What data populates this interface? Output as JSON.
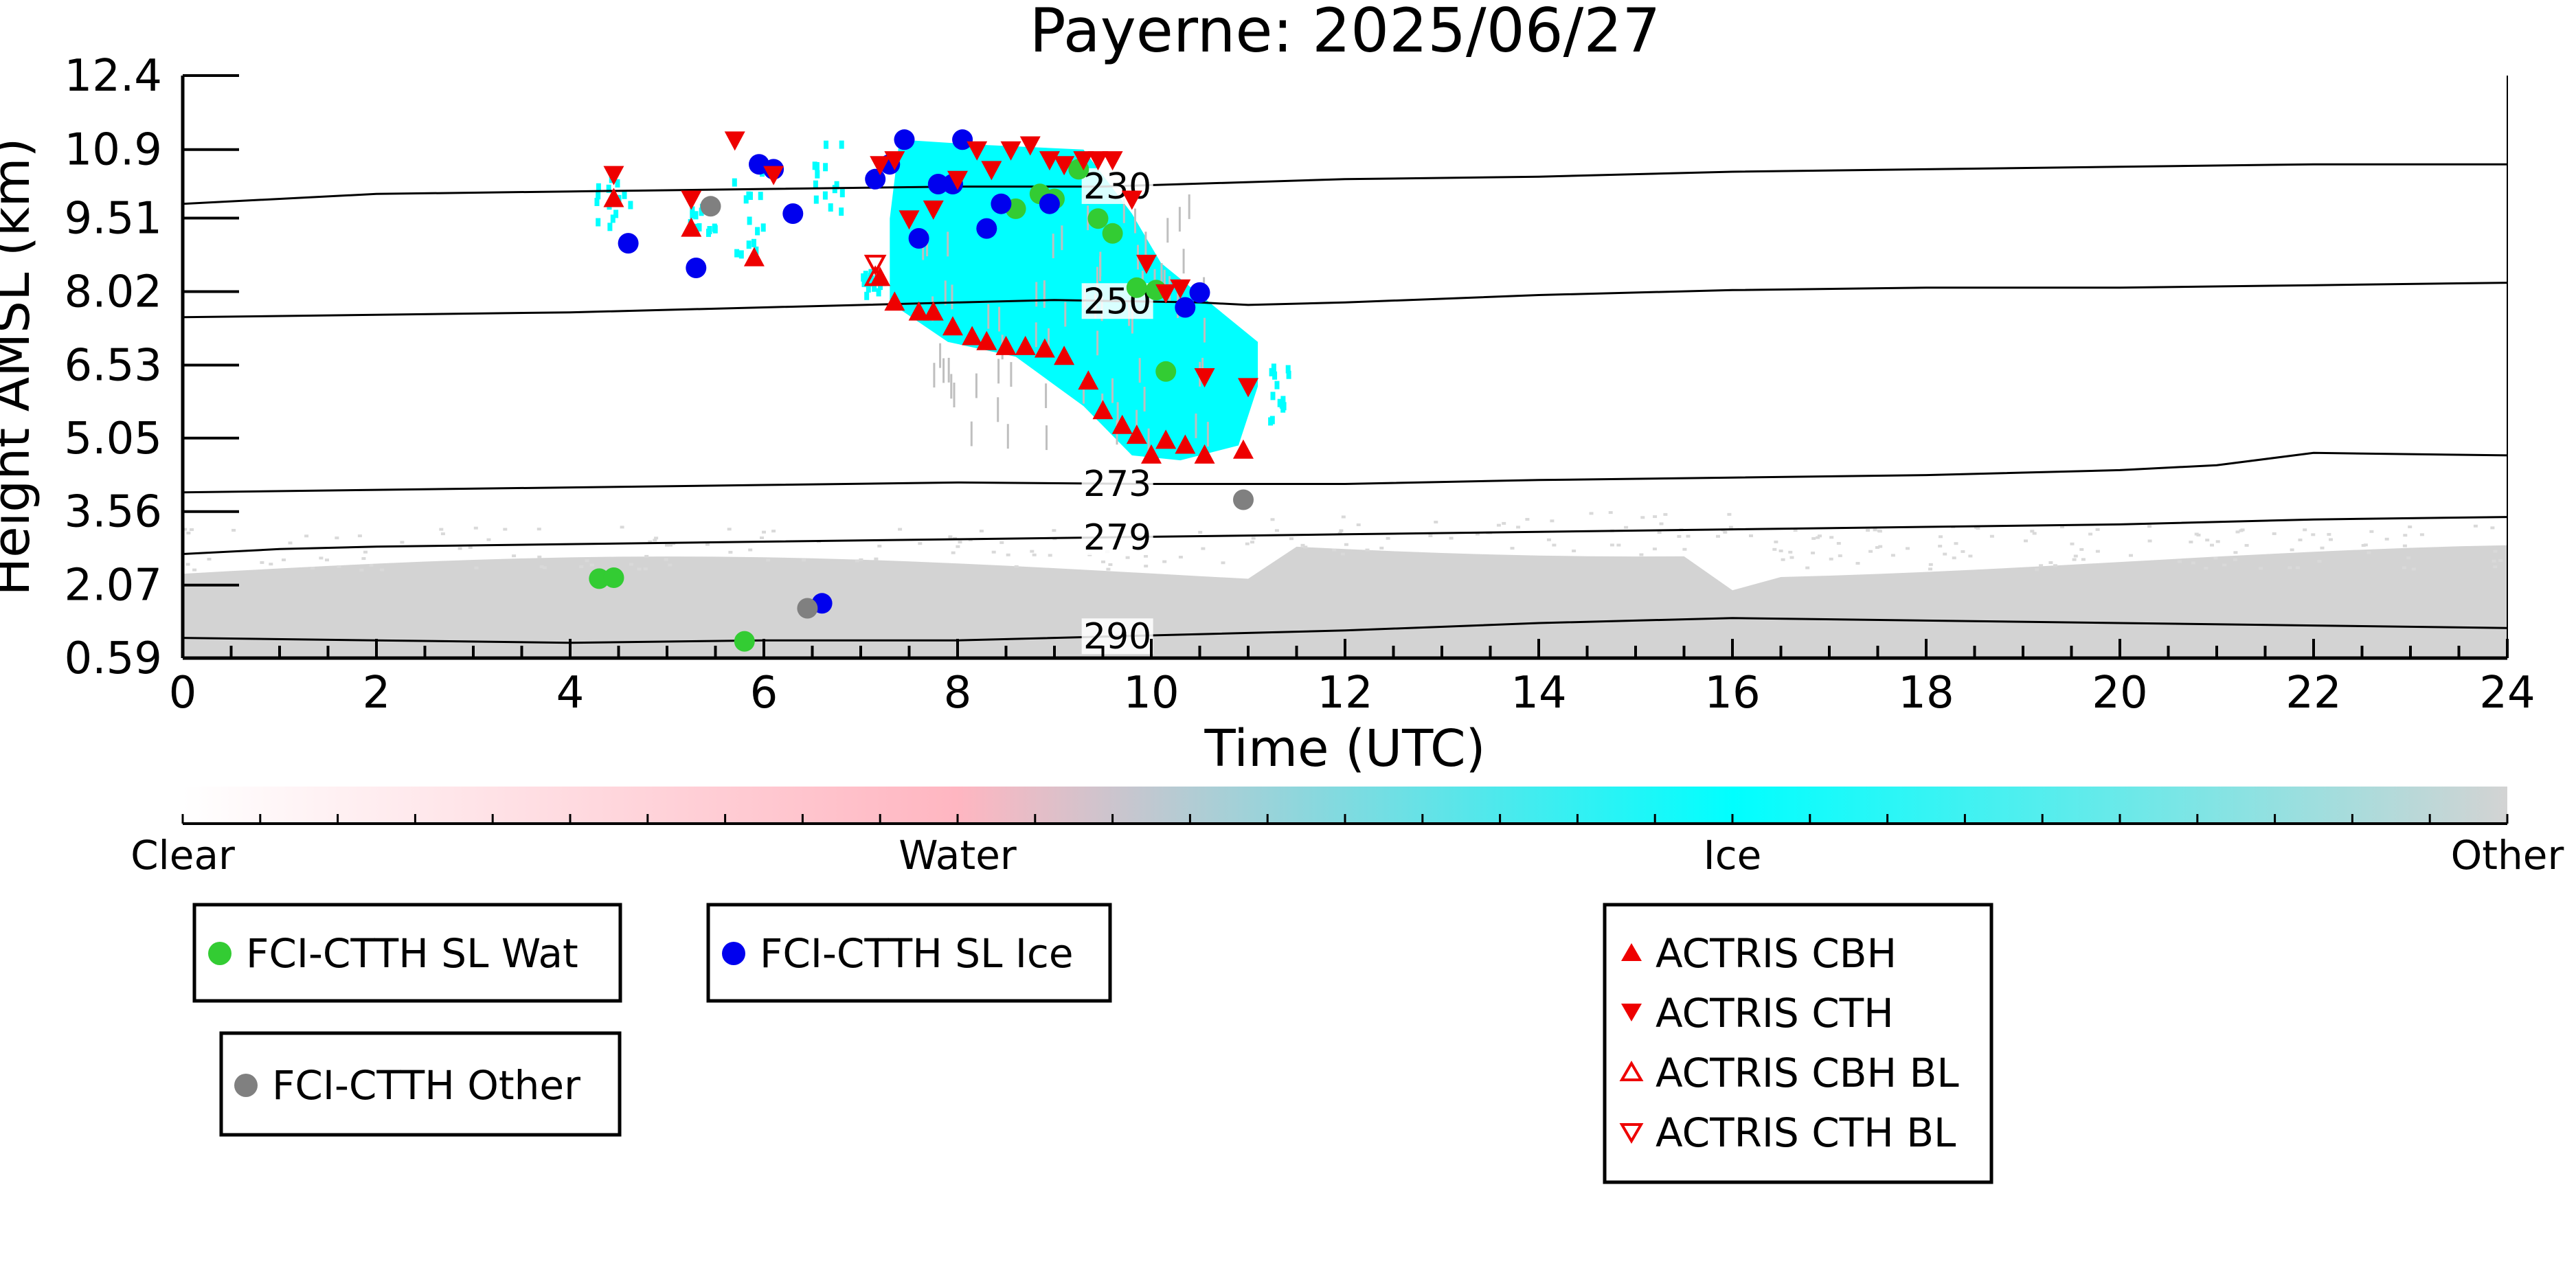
{
  "chart_data": {
    "type": "scatter",
    "title": "Payerne: 2025/06/27",
    "xlabel": "Time (UTC)",
    "ylabel": "Height AMSL (km)",
    "xlim": [
      0,
      24
    ],
    "ylim": [
      0.59,
      12.4
    ],
    "x_ticks": [
      "0",
      "2",
      "4",
      "6",
      "8",
      "10",
      "12",
      "14",
      "16",
      "18",
      "20",
      "22",
      "24"
    ],
    "y_ticks": [
      "0.59",
      "2.07",
      "3.56",
      "5.05",
      "6.53",
      "8.02",
      "9.51",
      "10.9",
      "12.4"
    ],
    "colorbar": {
      "labels": [
        "Clear",
        "Water",
        "Ice",
        "Other"
      ],
      "colors": [
        "#ffffff",
        "#ffb6c1",
        "#00ffff",
        "#d3d3d3"
      ]
    },
    "contours": [
      {
        "label": "230",
        "x": [
          0,
          2,
          4,
          6,
          8,
          9.5,
          12,
          14,
          16,
          18,
          20,
          22,
          24
        ],
        "y": [
          9.8,
          10.0,
          10.05,
          10.1,
          10.15,
          10.15,
          10.3,
          10.35,
          10.45,
          10.5,
          10.55,
          10.6,
          10.6
        ]
      },
      {
        "label": "250",
        "x": [
          0,
          2,
          4,
          6,
          8,
          9,
          10.5,
          11,
          12,
          14,
          16,
          18,
          20,
          22,
          24
        ],
        "y": [
          7.5,
          7.55,
          7.6,
          7.7,
          7.8,
          7.85,
          7.8,
          7.75,
          7.8,
          7.95,
          8.05,
          8.1,
          8.1,
          8.15,
          8.2
        ]
      },
      {
        "label": "273",
        "x": [
          0,
          2,
          4,
          6,
          8,
          10,
          12,
          14,
          16,
          18,
          20,
          21,
          22,
          24
        ],
        "y": [
          3.95,
          4.0,
          4.05,
          4.1,
          4.15,
          4.12,
          4.12,
          4.2,
          4.25,
          4.3,
          4.4,
          4.5,
          4.75,
          4.7
        ]
      },
      {
        "label": "279",
        "x": [
          0,
          1,
          2,
          4,
          6,
          8,
          10,
          12,
          14,
          16,
          18,
          20,
          22,
          24
        ],
        "y": [
          2.7,
          2.8,
          2.85,
          2.9,
          2.95,
          3.0,
          3.05,
          3.1,
          3.15,
          3.2,
          3.25,
          3.3,
          3.4,
          3.45
        ]
      },
      {
        "label": "290",
        "x": [
          0,
          2,
          4,
          6,
          8,
          10,
          12,
          14,
          16,
          18,
          20,
          22,
          24
        ],
        "y": [
          1.0,
          0.95,
          0.9,
          0.95,
          0.95,
          1.05,
          1.15,
          1.3,
          1.4,
          1.35,
          1.3,
          1.25,
          1.2
        ]
      }
    ],
    "series": [
      {
        "name": "FCI-CTTH SL Wat",
        "marker": "circle",
        "color": "#33cc33",
        "points": [
          [
            4.3,
            2.2
          ],
          [
            4.45,
            2.22
          ],
          [
            5.8,
            0.93
          ],
          [
            8.6,
            9.7
          ],
          [
            8.85,
            10.0
          ],
          [
            9.0,
            9.9
          ],
          [
            9.25,
            10.5
          ],
          [
            9.45,
            9.5
          ],
          [
            9.6,
            9.2
          ],
          [
            9.85,
            8.1
          ],
          [
            10.05,
            8.05
          ],
          [
            10.15,
            6.4
          ]
        ]
      },
      {
        "name": "FCI-CTTH SL Ice",
        "marker": "circle",
        "color": "#0000ee",
        "points": [
          [
            4.6,
            9.0
          ],
          [
            5.3,
            8.5
          ],
          [
            5.95,
            10.6
          ],
          [
            6.1,
            10.5
          ],
          [
            6.3,
            9.6
          ],
          [
            7.15,
            10.3
          ],
          [
            7.3,
            10.6
          ],
          [
            7.45,
            11.1
          ],
          [
            7.6,
            9.1
          ],
          [
            7.8,
            10.2
          ],
          [
            7.95,
            10.2
          ],
          [
            8.05,
            11.1
          ],
          [
            8.3,
            9.3
          ],
          [
            8.45,
            9.8
          ],
          [
            8.95,
            9.8
          ],
          [
            10.35,
            7.7
          ],
          [
            10.5,
            8.0
          ],
          [
            6.6,
            1.7
          ]
        ]
      },
      {
        "name": "FCI-CTTH Other",
        "marker": "circle",
        "color": "#808080",
        "points": [
          [
            5.45,
            9.75
          ],
          [
            6.45,
            1.6
          ],
          [
            10.95,
            3.8
          ]
        ]
      },
      {
        "name": "ACTRIS CBH",
        "marker": "triangle-up",
        "color": "#ee0000",
        "points": [
          [
            4.45,
            9.9
          ],
          [
            5.25,
            9.3
          ],
          [
            5.9,
            8.7
          ],
          [
            7.2,
            8.3
          ],
          [
            7.35,
            7.8
          ],
          [
            7.6,
            7.6
          ],
          [
            7.75,
            7.6
          ],
          [
            7.95,
            7.3
          ],
          [
            8.15,
            7.1
          ],
          [
            8.3,
            7.0
          ],
          [
            8.5,
            6.9
          ],
          [
            8.7,
            6.9
          ],
          [
            8.9,
            6.85
          ],
          [
            9.1,
            6.7
          ],
          [
            9.35,
            6.2
          ],
          [
            9.5,
            5.6
          ],
          [
            9.7,
            5.3
          ],
          [
            9.85,
            5.1
          ],
          [
            10.0,
            4.7
          ],
          [
            10.15,
            5.0
          ],
          [
            10.35,
            4.9
          ],
          [
            10.55,
            4.7
          ],
          [
            10.95,
            4.8
          ]
        ]
      },
      {
        "name": "ACTRIS CTH",
        "marker": "triangle-down",
        "color": "#ee0000",
        "points": [
          [
            4.45,
            10.4
          ],
          [
            5.25,
            9.9
          ],
          [
            5.7,
            11.1
          ],
          [
            6.1,
            10.4
          ],
          [
            7.2,
            10.6
          ],
          [
            7.35,
            10.7
          ],
          [
            7.5,
            9.5
          ],
          [
            7.75,
            9.7
          ],
          [
            8.0,
            10.3
          ],
          [
            8.2,
            10.9
          ],
          [
            8.35,
            10.5
          ],
          [
            8.55,
            10.9
          ],
          [
            8.75,
            11.0
          ],
          [
            8.95,
            10.7
          ],
          [
            9.1,
            10.6
          ],
          [
            9.3,
            10.7
          ],
          [
            9.45,
            10.7
          ],
          [
            9.6,
            10.7
          ],
          [
            9.8,
            9.9
          ],
          [
            9.95,
            8.6
          ],
          [
            10.15,
            8.0
          ],
          [
            10.3,
            8.1
          ],
          [
            10.55,
            6.3
          ],
          [
            11.0,
            6.1
          ]
        ]
      },
      {
        "name": "ACTRIS CBH BL",
        "marker": "triangle-up-open",
        "color": "#ee0000",
        "points": [
          [
            7.15,
            8.3
          ]
        ]
      },
      {
        "name": "ACTRIS CTH BL",
        "marker": "triangle-down-open",
        "color": "#ee0000",
        "points": [
          [
            7.15,
            8.6
          ]
        ]
      }
    ]
  }
}
